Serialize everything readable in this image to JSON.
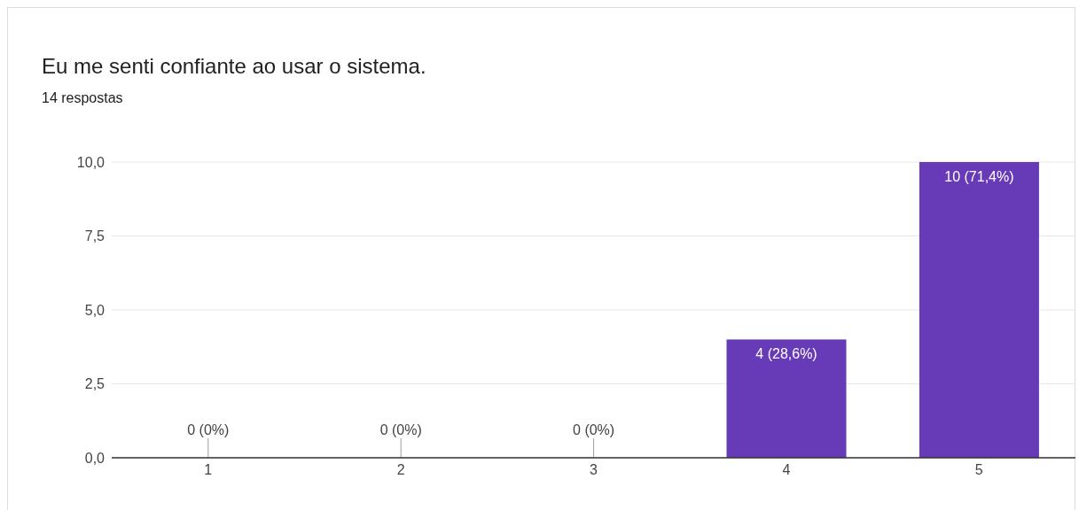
{
  "chart_data": {
    "type": "bar",
    "title": "Eu me senti confiante ao usar o sistema.",
    "subtitle": "14 respostas",
    "categories": [
      "1",
      "2",
      "3",
      "4",
      "5"
    ],
    "values": [
      0,
      0,
      0,
      4,
      10
    ],
    "value_labels": [
      "0 (0%)",
      "0 (0%)",
      "0 (0%)",
      "4 (28,6%)",
      "10 (71,4%)"
    ],
    "color": "#673ab7",
    "ylim": [
      0,
      10
    ],
    "yticks": [
      {
        "value": 0,
        "label": "0,0"
      },
      {
        "value": 2.5,
        "label": "2,5"
      },
      {
        "value": 5,
        "label": "5,0"
      },
      {
        "value": 7.5,
        "label": "7,5"
      },
      {
        "value": 10,
        "label": "10,0"
      }
    ],
    "grid": "y"
  }
}
